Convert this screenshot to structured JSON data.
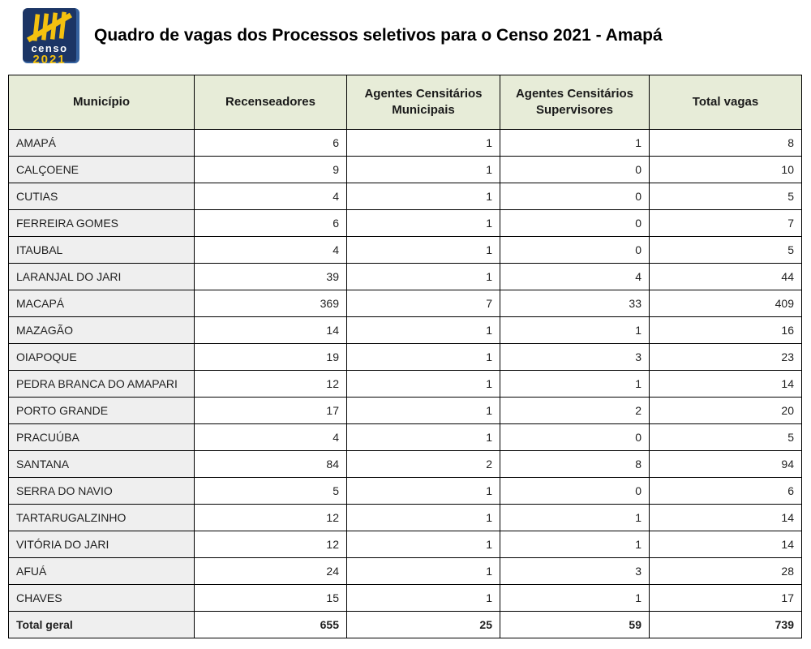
{
  "logo": {
    "word": "censo",
    "year": "2021"
  },
  "title": "Quadro de vagas dos Processos seletivos para o Censo 2021 - Amapá",
  "colors": {
    "header_bg": "#e7ecd8",
    "label_col_bg": "#efefef",
    "border": "#000000",
    "logo_navy": "#1c3565",
    "logo_light_blue": "#35619e",
    "logo_yellow": "#f4c10f"
  },
  "table": {
    "columns": [
      "Município",
      "Recenseadores",
      "Agentes Censitários Municipais",
      "Agentes Censitários Supervisores",
      "Total vagas"
    ],
    "rows": [
      {
        "municipio": "AMAPÁ",
        "recenseadores": "6",
        "agentes_municipais": "1",
        "agentes_supervisores": "1",
        "total": "8"
      },
      {
        "municipio": "CALÇOENE",
        "recenseadores": "9",
        "agentes_municipais": "1",
        "agentes_supervisores": "0",
        "total": "10"
      },
      {
        "municipio": "CUTIAS",
        "recenseadores": "4",
        "agentes_municipais": "1",
        "agentes_supervisores": "0",
        "total": "5"
      },
      {
        "municipio": "FERREIRA GOMES",
        "recenseadores": "6",
        "agentes_municipais": "1",
        "agentes_supervisores": "0",
        "total": "7"
      },
      {
        "municipio": "ITAUBAL",
        "recenseadores": "4",
        "agentes_municipais": "1",
        "agentes_supervisores": "0",
        "total": "5"
      },
      {
        "municipio": "LARANJAL DO JARI",
        "recenseadores": "39",
        "agentes_municipais": "1",
        "agentes_supervisores": "4",
        "total": "44"
      },
      {
        "municipio": "MACAPÁ",
        "recenseadores": "369",
        "agentes_municipais": "7",
        "agentes_supervisores": "33",
        "total": "409"
      },
      {
        "municipio": "MAZAGÃO",
        "recenseadores": "14",
        "agentes_municipais": "1",
        "agentes_supervisores": "1",
        "total": "16"
      },
      {
        "municipio": "OIAPOQUE",
        "recenseadores": "19",
        "agentes_municipais": "1",
        "agentes_supervisores": "3",
        "total": "23"
      },
      {
        "municipio": "PEDRA BRANCA DO AMAPARI",
        "recenseadores": "12",
        "agentes_municipais": "1",
        "agentes_supervisores": "1",
        "total": "14"
      },
      {
        "municipio": "PORTO GRANDE",
        "recenseadores": "17",
        "agentes_municipais": "1",
        "agentes_supervisores": "2",
        "total": "20"
      },
      {
        "municipio": "PRACUÚBA",
        "recenseadores": "4",
        "agentes_municipais": "1",
        "agentes_supervisores": "0",
        "total": "5"
      },
      {
        "municipio": "SANTANA",
        "recenseadores": "84",
        "agentes_municipais": "2",
        "agentes_supervisores": "8",
        "total": "94"
      },
      {
        "municipio": "SERRA DO NAVIO",
        "recenseadores": "5",
        "agentes_municipais": "1",
        "agentes_supervisores": "0",
        "total": "6"
      },
      {
        "municipio": "TARTARUGALZINHO",
        "recenseadores": "12",
        "agentes_municipais": "1",
        "agentes_supervisores": "1",
        "total": "14"
      },
      {
        "municipio": "VITÓRIA DO JARI",
        "recenseadores": "12",
        "agentes_municipais": "1",
        "agentes_supervisores": "1",
        "total": "14"
      },
      {
        "municipio": "AFUÁ",
        "recenseadores": "24",
        "agentes_municipais": "1",
        "agentes_supervisores": "3",
        "total": "28"
      },
      {
        "municipio": "CHAVES",
        "recenseadores": "15",
        "agentes_municipais": "1",
        "agentes_supervisores": "1",
        "total": "17"
      }
    ],
    "total_row": {
      "label": "Total geral",
      "recenseadores": "655",
      "agentes_municipais": "25",
      "agentes_supervisores": "59",
      "total": "739"
    }
  }
}
